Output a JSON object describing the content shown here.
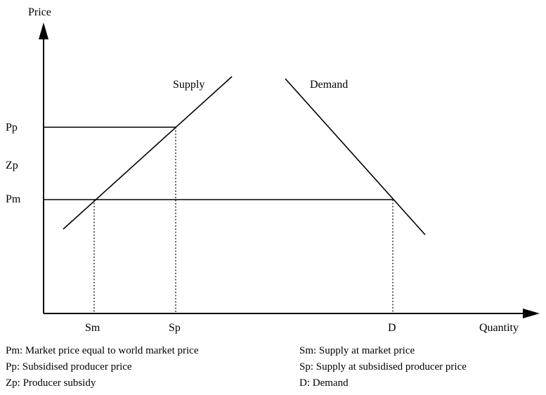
{
  "axes": {
    "y_label": "Price",
    "x_label": "Quantity"
  },
  "curves": {
    "supply_label": "Supply",
    "demand_label": "Demand"
  },
  "price_ticks": {
    "pp": "Pp",
    "zp": "Zp",
    "pm": "Pm"
  },
  "quantity_ticks": {
    "sm": "Sm",
    "sp": "Sp",
    "d": "D"
  },
  "legend": {
    "left": [
      "Pm: Market price equal to world market price",
      "Pp: Subsidised producer price",
      "Zp: Producer subsidy"
    ],
    "right": [
      "Sm: Supply at market price",
      "Sp: Supply at subsidised producer price",
      "D: Demand"
    ]
  }
}
